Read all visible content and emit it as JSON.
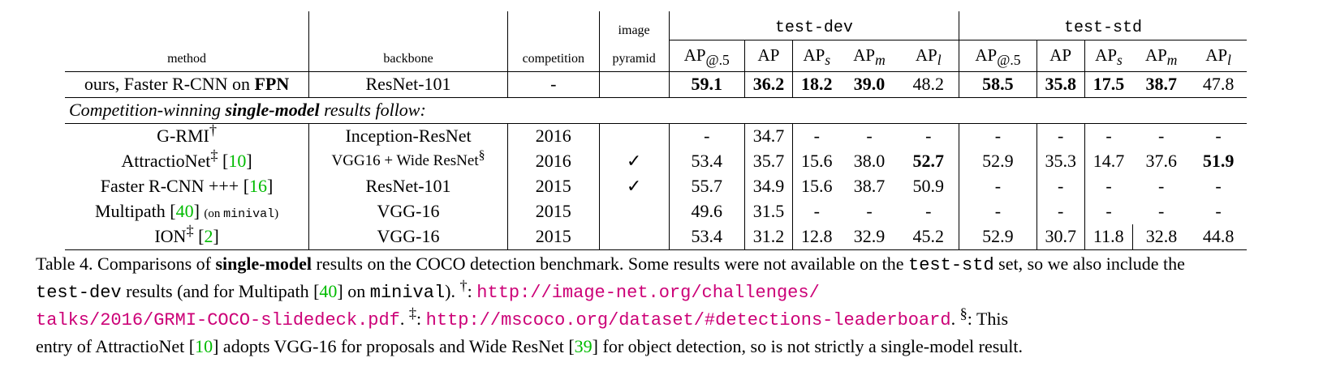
{
  "headers": {
    "method": "method",
    "backbone": "backbone",
    "competition": "competition",
    "image": "image",
    "pyramid": "pyramid",
    "test_dev": "test-dev",
    "test_std": "test-std",
    "ap_base": "AP",
    "ap_sub_50": "@.5",
    "sub_s": "s",
    "sub_m": "m",
    "sub_l": "l"
  },
  "ours": {
    "method_prefix": "ours, Faster R-CNN on ",
    "method_bold": "FPN",
    "backbone": "ResNet-101",
    "competition": "-",
    "pyramid": "",
    "dev": [
      "59.1",
      "36.2",
      "18.2",
      "39.0",
      "48.2"
    ],
    "std": [
      "58.5",
      "35.8",
      "17.5",
      "38.7",
      "47.8"
    ]
  },
  "section": {
    "prefix": "Competition-winning ",
    "bold": "single-model",
    "suffix": " results follow:"
  },
  "rows": [
    {
      "name": "G-RMI",
      "mark": "†",
      "ref": "",
      "note": "",
      "note_mono": "",
      "note_close": "",
      "backbone": "Inception-ResNet",
      "backbone_mark": "",
      "competition": "2016",
      "pyramid": "",
      "dev": [
        "-",
        "34.7",
        "-",
        "-",
        "-"
      ],
      "std": [
        "-",
        "-",
        "-",
        "-",
        "-"
      ]
    },
    {
      "name": "AttractioNet",
      "mark": "‡",
      "ref": "10",
      "note": "",
      "note_mono": "",
      "note_close": "",
      "backbone": "VGG16 + Wide ResNet",
      "backbone_mark": "§",
      "competition": "2016",
      "pyramid": "✓",
      "dev": [
        "53.4",
        "35.7",
        "15.6",
        "38.0",
        "52.7"
      ],
      "std": [
        "52.9",
        "35.3",
        "14.7",
        "37.6",
        "51.9"
      ]
    },
    {
      "name": "Faster R-CNN +++",
      "mark": "",
      "ref": "16",
      "note": "",
      "note_mono": "",
      "note_close": "",
      "backbone": "ResNet-101",
      "backbone_mark": "",
      "competition": "2015",
      "pyramid": "✓",
      "dev": [
        "55.7",
        "34.9",
        "15.6",
        "38.7",
        "50.9"
      ],
      "std": [
        "-",
        "-",
        "-",
        "-",
        "-"
      ]
    },
    {
      "name": "Multipath",
      "mark": "",
      "ref": "40",
      "note": "(on ",
      "note_mono": "minival",
      "note_close": ")",
      "backbone": "VGG-16",
      "backbone_mark": "",
      "competition": "2015",
      "pyramid": "",
      "dev": [
        "49.6",
        "31.5",
        "-",
        "-",
        "-"
      ],
      "std": [
        "-",
        "-",
        "-",
        "-",
        "-"
      ]
    },
    {
      "name": "ION",
      "mark": "‡",
      "ref": "2",
      "note": "",
      "note_mono": "",
      "note_close": "",
      "backbone": "VGG-16",
      "backbone_mark": "",
      "competition": "2015",
      "pyramid": "",
      "dev": [
        "53.4",
        "31.2",
        "12.8",
        "32.9",
        "45.2"
      ],
      "std": [
        "52.9",
        "30.7",
        "11.8",
        "32.8",
        "44.8"
      ]
    }
  ],
  "caption": {
    "label": "Table 4. Comparisons of ",
    "bold": "single-model",
    "t1": " results on the COCO detection benchmark.  Some results were not available on the ",
    "m1": "test-std",
    "t2": " set, so we also include the ",
    "m2": "test-dev",
    "t3": " results (and for Multipath [",
    "r40": "40",
    "t4": "] on ",
    "m3": "minival",
    "t5": "). ",
    "dagger": "†",
    "colon": ": ",
    "url1a": "http://image-net.org/challenges/",
    "url1b": "talks/2016/GRMI-COCO-slidedeck.pdf",
    "t6": ". ",
    "ddagger": "‡",
    "url2": "http://mscoco.org/dataset/#detections-leaderboard",
    "t7": ". ",
    "section": "§",
    "t8": ": This",
    "t9": "entry of AttractioNet [",
    "r10": "10",
    "t10": "] adopts VGG-16 for proposals and Wide ResNet [",
    "r39": "39",
    "t11": "] for object detection, so is not strictly a single-model result."
  }
}
